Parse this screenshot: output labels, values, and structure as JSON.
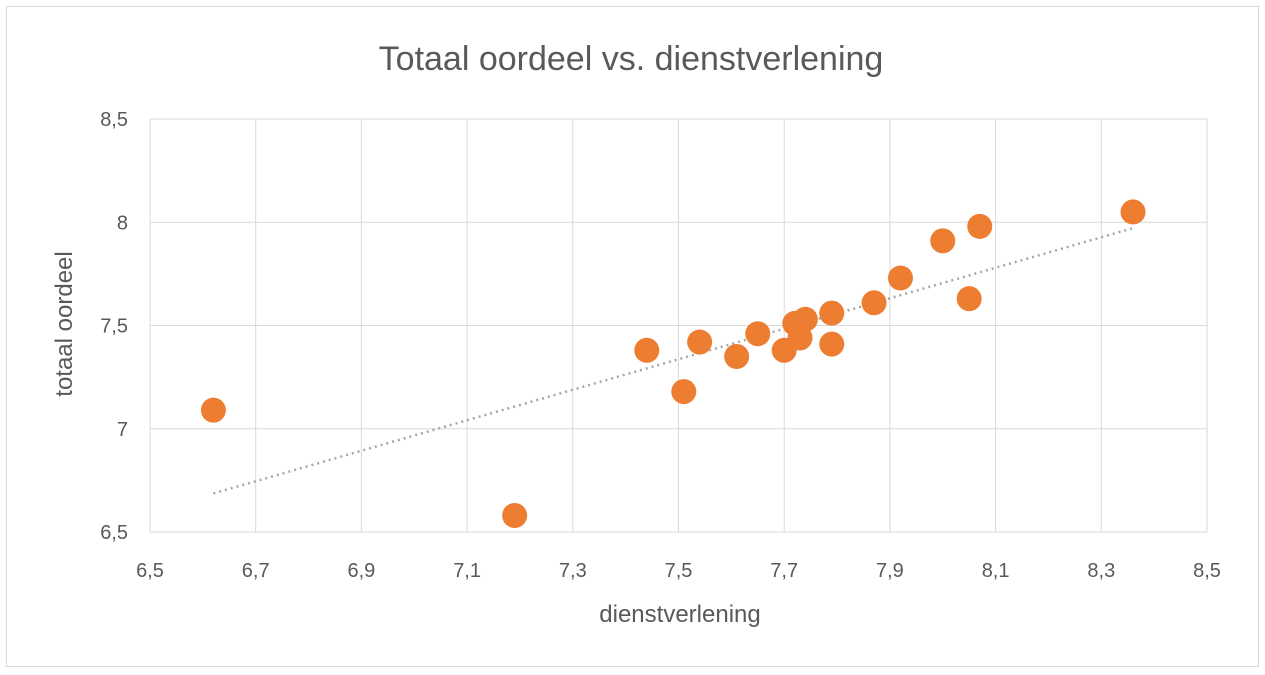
{
  "chart_data": {
    "type": "scatter",
    "title": "Totaal oordeel vs. dienstverlening",
    "xlabel": "dienstverlening",
    "ylabel": "totaal oordeel",
    "xlim": [
      6.5,
      8.5
    ],
    "ylim": [
      6.5,
      8.5
    ],
    "xticks": [
      "6,5",
      "6,7",
      "6,9",
      "7,1",
      "7,3",
      "7,5",
      "7,7",
      "7,9",
      "8,1",
      "8,3",
      "8,5"
    ],
    "yticks": [
      "6,5",
      "7",
      "7,5",
      "8",
      "8,5"
    ],
    "grid": true,
    "legend": "none",
    "point_color": "#ED7D31",
    "trendline": {
      "type": "linear",
      "style": "dotted",
      "color": "#A6A6A6"
    },
    "points": [
      {
        "x": 6.62,
        "y": 7.09
      },
      {
        "x": 7.19,
        "y": 6.58
      },
      {
        "x": 7.44,
        "y": 7.38
      },
      {
        "x": 7.51,
        "y": 7.18
      },
      {
        "x": 7.54,
        "y": 7.42
      },
      {
        "x": 7.61,
        "y": 7.35
      },
      {
        "x": 7.65,
        "y": 7.46
      },
      {
        "x": 7.7,
        "y": 7.38
      },
      {
        "x": 7.72,
        "y": 7.51
      },
      {
        "x": 7.73,
        "y": 7.44
      },
      {
        "x": 7.74,
        "y": 7.53
      },
      {
        "x": 7.79,
        "y": 7.56
      },
      {
        "x": 7.79,
        "y": 7.41
      },
      {
        "x": 7.87,
        "y": 7.61
      },
      {
        "x": 7.92,
        "y": 7.73
      },
      {
        "x": 8.0,
        "y": 7.91
      },
      {
        "x": 8.05,
        "y": 7.63
      },
      {
        "x": 8.07,
        "y": 7.98
      },
      {
        "x": 8.36,
        "y": 8.05
      }
    ]
  }
}
